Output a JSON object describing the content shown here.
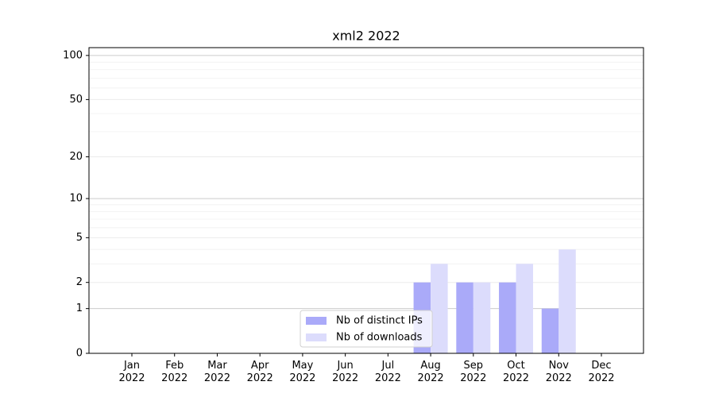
{
  "chart_data": {
    "type": "bar",
    "title": "xml2 2022",
    "categories": [
      "Jan 2022",
      "Feb 2022",
      "Mar 2022",
      "Apr 2022",
      "May 2022",
      "Jun 2022",
      "Jul 2022",
      "Aug 2022",
      "Sep 2022",
      "Oct 2022",
      "Nov 2022",
      "Dec 2022"
    ],
    "series": [
      {
        "name": "Nb of distinct IPs",
        "color": "#aaaaf9",
        "values": [
          0,
          0,
          0,
          0,
          0,
          0,
          0,
          2,
          2,
          2,
          1,
          0
        ]
      },
      {
        "name": "Nb of downloads",
        "color": "#dcdcfc",
        "values": [
          0,
          0,
          0,
          0,
          0,
          0,
          0,
          3,
          2,
          3,
          4,
          0
        ]
      }
    ],
    "yscale": "log1p",
    "ylim": [
      0,
      113
    ],
    "yticks": [
      0,
      1,
      2,
      5,
      10,
      20,
      50,
      100
    ],
    "yminorticks": [
      3,
      4,
      6,
      7,
      8,
      9,
      30,
      40,
      60,
      70,
      80,
      90
    ],
    "grid": true,
    "legend": "lower center"
  }
}
